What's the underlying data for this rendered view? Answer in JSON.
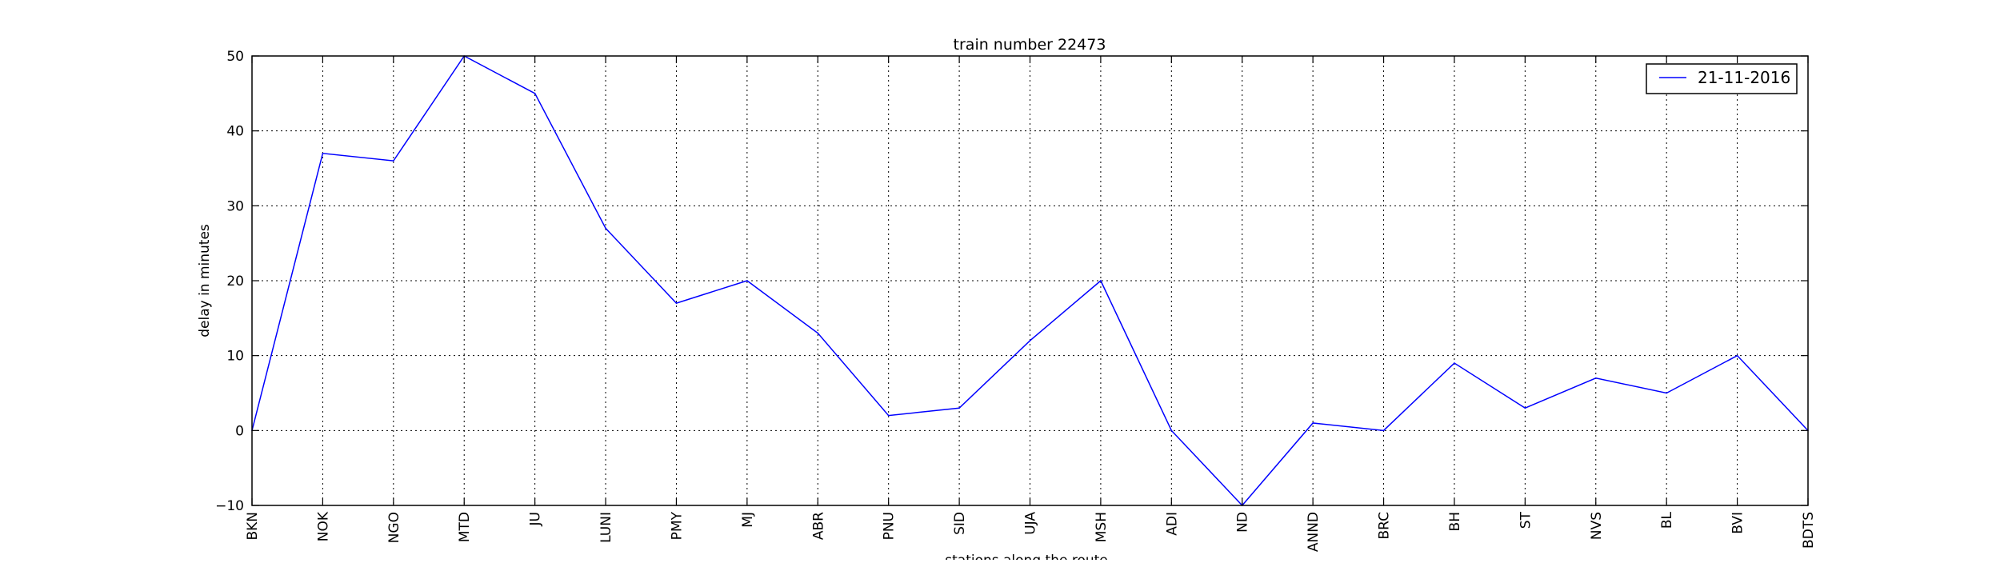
{
  "chart_data": {
    "type": "line",
    "title": "train number 22473",
    "xlabel": "stations along the route",
    "ylabel": "delay in minutes",
    "ylim": [
      -10,
      50
    ],
    "yticks": [
      -10,
      0,
      10,
      20,
      30,
      40,
      50
    ],
    "grid": true,
    "legend_position": "top-right",
    "categories": [
      "BKN",
      "NOK",
      "NGO",
      "MTD",
      "JU",
      "LUNI",
      "PMY",
      "MJ",
      "ABR",
      "PNU",
      "SID",
      "UJA",
      "MSH",
      "ADI",
      "ND",
      "ANND",
      "BRC",
      "BH",
      "ST",
      "NVS",
      "BL",
      "BVI",
      "BDTS"
    ],
    "series": [
      {
        "name": "21-11-2016",
        "color": "#0000ff",
        "values": [
          0,
          37,
          36,
          50,
          45,
          27,
          17,
          20,
          13,
          2,
          3,
          12,
          20,
          0,
          -10,
          1,
          0,
          9,
          3,
          7,
          5,
          10,
          0
        ]
      }
    ]
  }
}
